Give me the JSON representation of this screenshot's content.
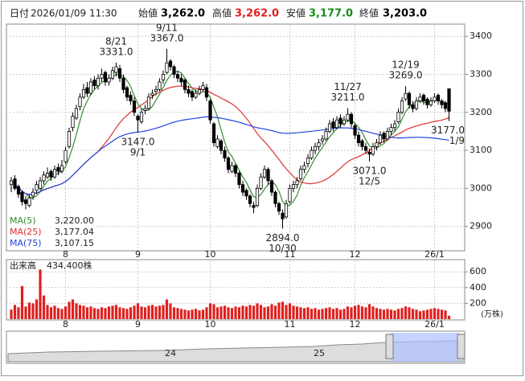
{
  "header": {
    "date_label": "日付",
    "date": "2026/01/09 11:30",
    "open_label": "始値",
    "open": "3,262.0",
    "high_label": "高値",
    "high": "3,262.0",
    "low_label": "安値",
    "low": "3,177.0",
    "close_label": "終値",
    "close": "3,203.0"
  },
  "chart_data": {
    "type": "candlestick",
    "categories": [
      null,
      null,
      null,
      null,
      null,
      null,
      null,
      null,
      null,
      null,
      null,
      null,
      null,
      null,
      null,
      "8",
      null,
      null,
      null,
      null,
      null,
      null,
      null,
      null,
      null,
      null,
      null,
      null,
      null,
      null,
      null,
      null,
      null,
      null,
      null,
      "9",
      null,
      null,
      null,
      null,
      null,
      null,
      null,
      null,
      null,
      null,
      null,
      null,
      null,
      null,
      null,
      null,
      null,
      null,
      null,
      "10",
      null,
      null,
      null,
      null,
      null,
      null,
      null,
      null,
      null,
      null,
      null,
      null,
      null,
      null,
      null,
      null,
      null,
      null,
      null,
      null,
      null,
      "11",
      null,
      null,
      null,
      null,
      null,
      null,
      null,
      null,
      null,
      null,
      null,
      null,
      null,
      null,
      null,
      null,
      null,
      "12",
      null,
      null,
      null,
      null,
      null,
      null,
      null,
      null,
      null,
      null,
      null,
      null,
      null,
      null,
      null,
      null,
      null,
      null,
      null,
      null,
      null,
      "26/1",
      null,
      null,
      null,
      null
    ],
    "ohlc": [
      [
        3010,
        3030,
        2990,
        3020
      ],
      [
        3025,
        3035,
        2995,
        3000
      ],
      [
        3005,
        3010,
        2975,
        2985
      ],
      [
        2990,
        2995,
        2955,
        2965
      ],
      [
        2970,
        2980,
        2945,
        2960
      ],
      [
        2955,
        2985,
        2950,
        2975
      ],
      [
        2980,
        3000,
        2970,
        2990
      ],
      [
        2995,
        3020,
        2985,
        3010
      ],
      [
        3000,
        3030,
        2995,
        3020
      ],
      [
        3020,
        3045,
        3010,
        3035
      ],
      [
        3030,
        3055,
        3025,
        3040
      ],
      [
        3045,
        3050,
        3020,
        3030
      ],
      [
        3030,
        3060,
        3025,
        3050
      ],
      [
        3055,
        3065,
        3035,
        3045
      ],
      [
        3045,
        3075,
        3040,
        3060
      ],
      [
        3070,
        3110,
        3065,
        3100
      ],
      [
        3110,
        3160,
        3105,
        3150
      ],
      [
        3160,
        3200,
        3150,
        3190
      ],
      [
        3185,
        3220,
        3180,
        3210
      ],
      [
        3215,
        3250,
        3205,
        3240
      ],
      [
        3240,
        3275,
        3235,
        3260
      ],
      [
        3265,
        3280,
        3240,
        3250
      ],
      [
        3250,
        3290,
        3245,
        3280
      ],
      [
        3285,
        3295,
        3260,
        3270
      ],
      [
        3270,
        3300,
        3260,
        3290
      ],
      [
        3290,
        3315,
        3280,
        3300
      ],
      [
        3305,
        3310,
        3270,
        3280
      ],
      [
        3280,
        3300,
        3270,
        3290
      ],
      [
        3290,
        3320,
        3285,
        3310
      ],
      [
        3305,
        3331,
        3295,
        3320
      ],
      [
        3315,
        3325,
        3280,
        3290
      ],
      [
        3290,
        3300,
        3250,
        3260
      ],
      [
        3265,
        3270,
        3230,
        3240
      ],
      [
        3245,
        3255,
        3220,
        3230
      ],
      [
        3230,
        3240,
        3190,
        3200
      ],
      [
        3190,
        3195,
        3147,
        3180
      ],
      [
        3175,
        3210,
        3170,
        3200
      ],
      [
        3205,
        3220,
        3195,
        3210
      ],
      [
        3210,
        3250,
        3205,
        3240
      ],
      [
        3245,
        3260,
        3235,
        3250
      ],
      [
        3255,
        3270,
        3245,
        3260
      ],
      [
        3260,
        3290,
        3255,
        3280
      ],
      [
        3285,
        3310,
        3275,
        3300
      ],
      [
        3305,
        3367,
        3300,
        3330
      ],
      [
        3335,
        3340,
        3310,
        3320
      ],
      [
        3320,
        3325,
        3290,
        3300
      ],
      [
        3300,
        3310,
        3280,
        3290
      ],
      [
        3290,
        3300,
        3270,
        3280
      ],
      [
        3285,
        3290,
        3250,
        3260
      ],
      [
        3260,
        3270,
        3240,
        3250
      ],
      [
        3255,
        3260,
        3230,
        3240
      ],
      [
        3240,
        3260,
        3235,
        3250
      ],
      [
        3250,
        3270,
        3245,
        3260
      ],
      [
        3260,
        3280,
        3255,
        3270
      ],
      [
        3265,
        3275,
        3230,
        3240
      ],
      [
        3230,
        3235,
        3170,
        3180
      ],
      [
        3170,
        3175,
        3110,
        3120
      ],
      [
        3110,
        3140,
        3105,
        3130
      ],
      [
        3125,
        3130,
        3090,
        3100
      ],
      [
        3100,
        3110,
        3070,
        3080
      ],
      [
        3080,
        3085,
        3040,
        3050
      ],
      [
        3045,
        3070,
        3040,
        3060
      ],
      [
        3060,
        3065,
        3030,
        3040
      ],
      [
        3040,
        3045,
        3000,
        3010
      ],
      [
        3010,
        3020,
        2980,
        2990
      ],
      [
        2995,
        3000,
        2970,
        2980
      ],
      [
        2980,
        2985,
        2950,
        2960
      ],
      [
        2955,
        2965,
        2935,
        2950
      ],
      [
        2955,
        3010,
        2950,
        3000
      ],
      [
        3000,
        3040,
        2995,
        3030
      ],
      [
        3030,
        3060,
        3025,
        3050
      ],
      [
        3050,
        3055,
        3010,
        3020
      ],
      [
        3020,
        3025,
        2980,
        2990
      ],
      [
        2990,
        2995,
        2950,
        2960
      ],
      [
        2960,
        2965,
        2930,
        2940
      ],
      [
        2935,
        2945,
        2894,
        2920
      ],
      [
        2925,
        2970,
        2920,
        2960
      ],
      [
        2965,
        3010,
        2960,
        3000
      ],
      [
        3000,
        3020,
        2990,
        3010
      ],
      [
        3010,
        3030,
        3000,
        3020
      ],
      [
        3025,
        3060,
        3020,
        3050
      ],
      [
        3050,
        3070,
        3040,
        3060
      ],
      [
        3065,
        3090,
        3055,
        3080
      ],
      [
        3080,
        3110,
        3075,
        3100
      ],
      [
        3100,
        3120,
        3090,
        3110
      ],
      [
        3110,
        3130,
        3100,
        3120
      ],
      [
        3125,
        3140,
        3115,
        3130
      ],
      [
        3130,
        3160,
        3125,
        3150
      ],
      [
        3150,
        3180,
        3145,
        3170
      ],
      [
        3175,
        3185,
        3150,
        3160
      ],
      [
        3160,
        3190,
        3155,
        3180
      ],
      [
        3185,
        3195,
        3160,
        3170
      ],
      [
        3170,
        3190,
        3165,
        3180
      ],
      [
        3180,
        3211,
        3175,
        3195
      ],
      [
        3195,
        3200,
        3160,
        3170
      ],
      [
        3165,
        3170,
        3130,
        3140
      ],
      [
        3140,
        3150,
        3110,
        3120
      ],
      [
        3125,
        3130,
        3100,
        3110
      ],
      [
        3110,
        3120,
        3090,
        3100
      ],
      [
        3095,
        3105,
        3071,
        3090
      ],
      [
        3090,
        3120,
        3085,
        3110
      ],
      [
        3110,
        3130,
        3100,
        3120
      ],
      [
        3120,
        3150,
        3115,
        3140
      ],
      [
        3145,
        3150,
        3120,
        3130
      ],
      [
        3130,
        3160,
        3125,
        3150
      ],
      [
        3150,
        3170,
        3140,
        3160
      ],
      [
        3160,
        3180,
        3150,
        3170
      ],
      [
        3175,
        3210,
        3170,
        3200
      ],
      [
        3200,
        3240,
        3195,
        3230
      ],
      [
        3235,
        3269,
        3230,
        3250
      ],
      [
        3250,
        3255,
        3210,
        3220
      ],
      [
        3220,
        3230,
        3200,
        3210
      ],
      [
        3210,
        3240,
        3205,
        3230
      ],
      [
        3230,
        3250,
        3225,
        3240
      ],
      [
        3245,
        3250,
        3220,
        3230
      ],
      [
        3235,
        3240,
        3210,
        3220
      ],
      [
        3220,
        3240,
        3215,
        3230
      ],
      [
        3230,
        3250,
        3225,
        3240
      ],
      [
        3245,
        3250,
        3220,
        3230
      ],
      [
        3230,
        3235,
        3210,
        3220
      ],
      [
        3225,
        3230,
        3200,
        3210
      ],
      [
        3262,
        3262,
        3177,
        3203
      ]
    ],
    "ylim": [
      2838,
      3430
    ],
    "yticks": [
      2900,
      3000,
      3100,
      3200,
      3300,
      3400
    ],
    "grid": true,
    "moving_averages": [
      {
        "name": "MA(5)",
        "period": 5,
        "color": "#2f8f2f",
        "value_label": "3,220.00"
      },
      {
        "name": "MA(25)",
        "period": 25,
        "color": "#e03030",
        "value_label": "3,177.04"
      },
      {
        "name": "MA(75)",
        "period": 75,
        "color": "#2244dd",
        "value_label": "3,107.15"
      }
    ],
    "highs": [
      {
        "date": "8/21",
        "value": 3331,
        "value_label": "3331.0"
      },
      {
        "date": "9/11",
        "value": 3367,
        "value_label": "3367.0"
      },
      {
        "date": "11/27",
        "value": 3211,
        "value_label": "3211.0"
      },
      {
        "date": "12/19",
        "value": 3269,
        "value_label": "3269.0"
      }
    ],
    "lows": [
      {
        "date": "9/1",
        "value": 3147,
        "value_label": "3147.0"
      },
      {
        "date": "10/30",
        "value": 2894,
        "value_label": "2894.0"
      },
      {
        "date": "12/5",
        "value": 3071,
        "value_label": "3071.0"
      },
      {
        "date": "1/9",
        "value": 3177,
        "value_label": "3177.0"
      }
    ],
    "volume": {
      "label": "出来高",
      "last_label": "434,400株",
      "unit": "(万株)",
      "color": "#e02020",
      "ylim": [
        0,
        745
      ],
      "yticks": [
        200,
        400,
        600
      ],
      "values": [
        120,
        180,
        150,
        420,
        160,
        210,
        200,
        250,
        630,
        300,
        180,
        150,
        170,
        140,
        130,
        160,
        220,
        250,
        200,
        180,
        170,
        150,
        160,
        140,
        130,
        150,
        140,
        160,
        170,
        180,
        150,
        140,
        130,
        150,
        170,
        200,
        160,
        150,
        170,
        180,
        160,
        170,
        180,
        250,
        200,
        150,
        140,
        130,
        120,
        110,
        120,
        130,
        110,
        120,
        150,
        200,
        190,
        150,
        160,
        170,
        150,
        140,
        160,
        150,
        170,
        160,
        180,
        170,
        200,
        180,
        150,
        160,
        190,
        170,
        210,
        220,
        180,
        200,
        170,
        160,
        150,
        140,
        150,
        130,
        140,
        120,
        130,
        140,
        150,
        130,
        140,
        120,
        130,
        160,
        150,
        170,
        180,
        160,
        150,
        190,
        160,
        140,
        130,
        120,
        130,
        120,
        110,
        130,
        140,
        160,
        150,
        130,
        120,
        100,
        110,
        120,
        130,
        140,
        130,
        120,
        110,
        43.44
      ]
    }
  },
  "navigator": {
    "labels": [
      "24",
      "25"
    ]
  }
}
